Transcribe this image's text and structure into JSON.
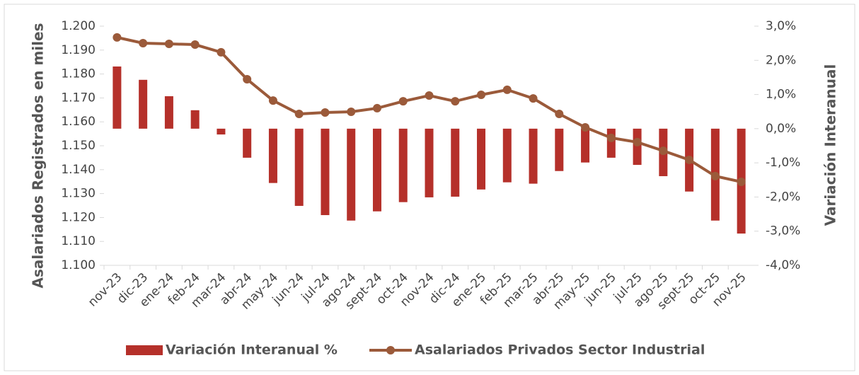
{
  "chart_data": {
    "type": "combo",
    "categories": [
      "nov-23",
      "dic-23",
      "ene-24",
      "feb-24",
      "mar-24",
      "abr-24",
      "may-24",
      "jun-24",
      "jul-24",
      "ago-24",
      "sept-24",
      "oct-24",
      "nov-24",
      "dic-24",
      "ene-25",
      "feb-25",
      "mar-25",
      "abr-25",
      "may-25",
      "jun-25",
      "jul-25",
      "ago-25",
      "sept-25",
      "oct-25",
      "nov-25"
    ],
    "ylabel": "Asalariados Registrados en miles",
    "y2label": "Variación Interanual",
    "ylim": [
      1100,
      1200
    ],
    "yticks": [
      {
        "value": 1100,
        "label": "1.100"
      },
      {
        "value": 1110,
        "label": "1.110"
      },
      {
        "value": 1120,
        "label": "1.120"
      },
      {
        "value": 1130,
        "label": "1.130"
      },
      {
        "value": 1140,
        "label": "1.140"
      },
      {
        "value": 1150,
        "label": "1.150"
      },
      {
        "value": 1160,
        "label": "1.160"
      },
      {
        "value": 1170,
        "label": "1.170"
      },
      {
        "value": 1180,
        "label": "1.180"
      },
      {
        "value": 1190,
        "label": "1.190"
      },
      {
        "value": 1200,
        "label": "1.200"
      }
    ],
    "y2lim": [
      -4,
      3
    ],
    "y2ticks": [
      {
        "value": -4,
        "label": "-4,0%"
      },
      {
        "value": -3,
        "label": "-3,0%"
      },
      {
        "value": -2,
        "label": "-2,0%"
      },
      {
        "value": -1,
        "label": "-1,0%"
      },
      {
        "value": 0,
        "label": "0,0%"
      },
      {
        "value": 1,
        "label": "1,0%"
      },
      {
        "value": 2,
        "label": "2,0%"
      },
      {
        "value": 3,
        "label": "3,0%"
      }
    ],
    "grid": false,
    "legend": "bottom",
    "series": [
      {
        "name": "Variación Interanual %",
        "type": "bar",
        "axis": "y2",
        "color": "#b5302a",
        "values": [
          1.82,
          1.43,
          0.95,
          0.54,
          -0.17,
          -0.85,
          -1.59,
          -2.26,
          -2.53,
          -2.69,
          -2.42,
          -2.15,
          -2.01,
          -1.99,
          -1.78,
          -1.57,
          -1.61,
          -1.24,
          -0.99,
          -0.85,
          -1.06,
          -1.39,
          -1.84,
          -2.69,
          -3.07
        ]
      },
      {
        "name": "Asalariados Privados Sector Industrial",
        "type": "line",
        "axis": "y",
        "color": "#9b5a3a",
        "values": [
          1195.3,
          1192.9,
          1192.6,
          1192.3,
          1189.1,
          1177.8,
          1168.9,
          1163.3,
          1163.9,
          1164.2,
          1165.7,
          1168.6,
          1171.0,
          1168.6,
          1171.3,
          1173.4,
          1169.8,
          1163.3,
          1157.7,
          1153.3,
          1151.5,
          1147.9,
          1144.1,
          1137.3,
          1134.9
        ]
      }
    ]
  }
}
